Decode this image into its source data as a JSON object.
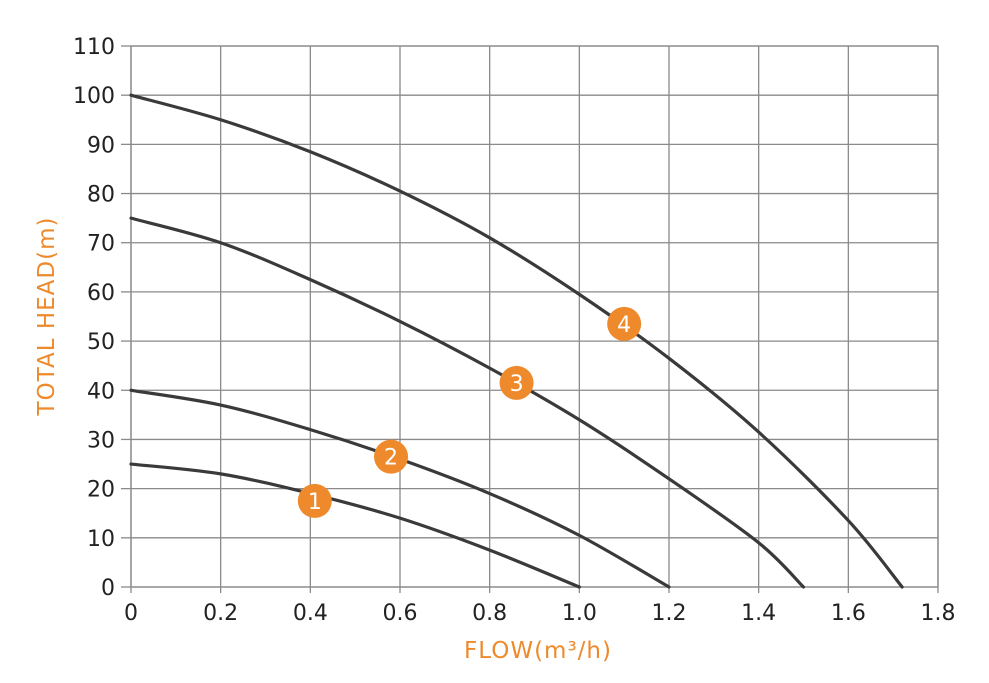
{
  "chart_data": {
    "type": "line",
    "xlabel": "FLOW(m³/h)",
    "ylabel": "TOTAL HEAD(m)",
    "xlim": [
      0,
      1.8
    ],
    "ylim": [
      0,
      110
    ],
    "x_ticks": [
      "0",
      "0.2",
      "0.4",
      "0.6",
      "0.8",
      "1.0",
      "1.2",
      "1.4",
      "1.6",
      "1.8"
    ],
    "y_ticks": [
      "0",
      "10",
      "20",
      "30",
      "40",
      "50",
      "60",
      "70",
      "80",
      "90",
      "100",
      "110"
    ],
    "grid": true,
    "colors": {
      "curve": "#3a3a3a",
      "grid": "#8a8a8a",
      "accent": "#ee8a2c",
      "text": "#222222"
    },
    "series": [
      {
        "name": "1",
        "x": [
          0,
          0.2,
          0.4,
          0.6,
          0.8,
          1.0
        ],
        "y": [
          25,
          23,
          19,
          14,
          7.5,
          0
        ],
        "label_at": [
          0.41,
          17.5
        ]
      },
      {
        "name": "2",
        "x": [
          0,
          0.2,
          0.4,
          0.6,
          0.8,
          1.0,
          1.2
        ],
        "y": [
          40,
          37,
          32,
          26,
          19,
          10.5,
          0
        ],
        "label_at": [
          0.58,
          26.5
        ]
      },
      {
        "name": "3",
        "x": [
          0,
          0.2,
          0.4,
          0.6,
          0.8,
          1.0,
          1.2,
          1.4,
          1.5
        ],
        "y": [
          75,
          70,
          62.5,
          54,
          44.5,
          34,
          22,
          9,
          0
        ],
        "label_at": [
          0.86,
          41.5
        ]
      },
      {
        "name": "4",
        "x": [
          0,
          0.2,
          0.4,
          0.6,
          0.8,
          1.0,
          1.2,
          1.4,
          1.6,
          1.72
        ],
        "y": [
          100,
          95,
          88.5,
          80.5,
          71,
          59.5,
          46.5,
          31.5,
          13.5,
          0
        ],
        "label_at": [
          1.1,
          53.5
        ]
      }
    ]
  }
}
